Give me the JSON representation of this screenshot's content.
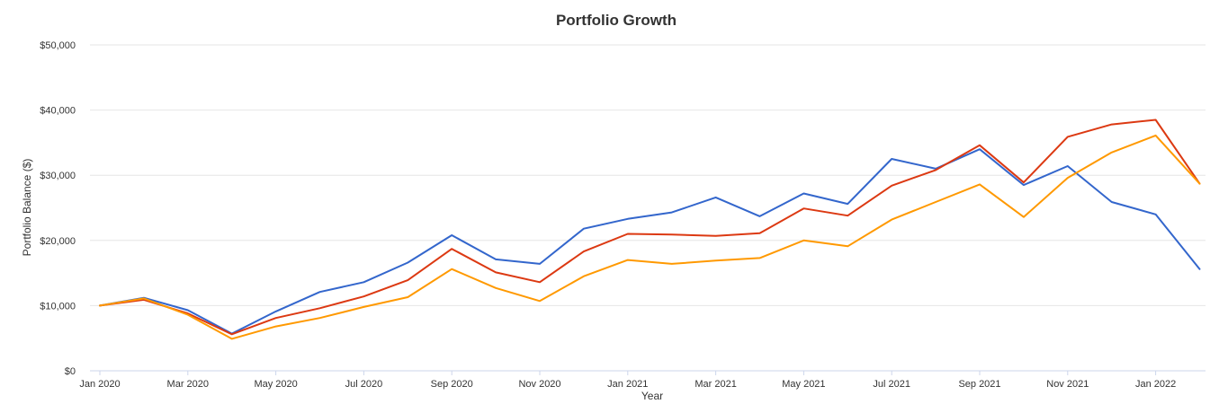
{
  "chart_data": {
    "type": "line",
    "title": "Portfolio Growth",
    "xlabel": "Year",
    "ylabel": "Portfolio Balance ($)",
    "ylim": [
      0,
      50000
    ],
    "y_ticks": [
      0,
      10000,
      20000,
      30000,
      40000,
      50000
    ],
    "y_tick_labels": [
      "$0",
      "$10,000",
      "$20,000",
      "$30,000",
      "$40,000",
      "$50,000"
    ],
    "categories": [
      "Jan 2020",
      "Feb 2020",
      "Mar 2020",
      "Apr 2020",
      "May 2020",
      "Jun 2020",
      "Jul 2020",
      "Aug 2020",
      "Sep 2020",
      "Oct 2020",
      "Nov 2020",
      "Dec 2020",
      "Jan 2021",
      "Feb 2021",
      "Mar 2021",
      "Apr 2021",
      "May 2021",
      "Jun 2021",
      "Jul 2021",
      "Aug 2021",
      "Sep 2021",
      "Oct 2021",
      "Nov 2021",
      "Dec 2021",
      "Jan 2022",
      "Feb 2022"
    ],
    "x_tick_labels": [
      "Jan 2020",
      "Mar 2020",
      "May 2020",
      "Jul 2020",
      "Sep 2020",
      "Nov 2020",
      "Jan 2021",
      "Mar 2021",
      "May 2021",
      "Jul 2021",
      "Sep 2021",
      "Nov 2021",
      "Jan 2022"
    ],
    "grid": true,
    "series": [
      {
        "name": "Blue series",
        "color": "#3366cc",
        "values": [
          10000,
          11200,
          9300,
          5700,
          9100,
          12100,
          13600,
          16600,
          20800,
          17100,
          16400,
          21800,
          23300,
          24300,
          26600,
          23700,
          27200,
          25600,
          32500,
          31000,
          34000,
          28500,
          31400,
          25900,
          24000,
          15600
        ]
      },
      {
        "name": "Red series",
        "color": "#dc3912",
        "values": [
          10000,
          10900,
          8800,
          5600,
          8100,
          9600,
          11400,
          13900,
          18700,
          15100,
          13600,
          18300,
          21000,
          20900,
          20700,
          21100,
          24900,
          23800,
          28400,
          30800,
          34600,
          28900,
          35900,
          37800,
          38500,
          28700
        ]
      },
      {
        "name": "Orange series",
        "color": "#ff9900",
        "values": [
          10000,
          11100,
          8600,
          4900,
          6800,
          8100,
          9800,
          11300,
          15600,
          12700,
          10700,
          14500,
          17000,
          16400,
          16900,
          17300,
          20000,
          19100,
          23200,
          25900,
          28600,
          23600,
          29600,
          33500,
          36100,
          28700
        ]
      }
    ]
  }
}
